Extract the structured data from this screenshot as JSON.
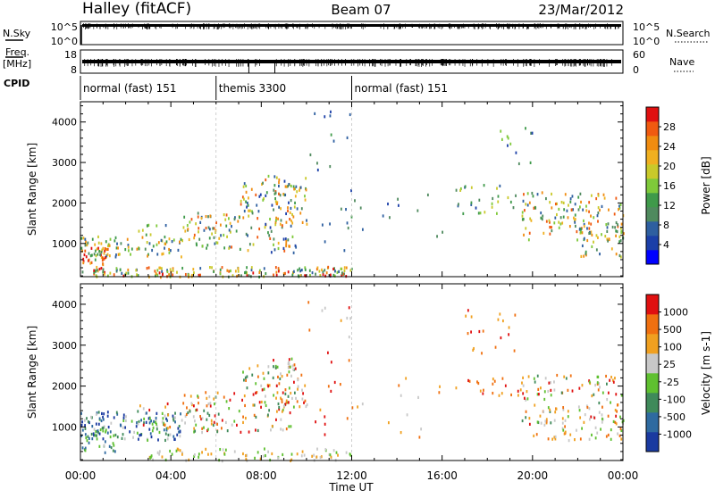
{
  "header": {
    "station": "Halley (fitACF)",
    "beam": "Beam 07",
    "date": "23/Mar/2012"
  },
  "chart_data": [
    {
      "type": "line",
      "name_left": "N.Sky",
      "name_right": "N.Search",
      "left_ticks": [
        "10^5",
        "10^0"
      ],
      "right_ticks": [
        "10^5",
        "10^0"
      ]
    },
    {
      "type": "line",
      "name_left_lines": [
        "Freq.",
        "[MHz]"
      ],
      "name_right": "Nave",
      "left_ticks": [
        "18",
        "8"
      ],
      "right_ticks": [
        "60",
        "0"
      ]
    },
    {
      "type": "table",
      "label": "CPID",
      "segments": [
        {
          "start": 0,
          "end": 6,
          "name": "normal (fast) 151"
        },
        {
          "start": 6,
          "end": 12,
          "name": "themis 3300"
        },
        {
          "start": 12,
          "end": 24,
          "name": "normal (fast) 151"
        }
      ]
    },
    {
      "type": "heatmap",
      "quantity": "Power",
      "ylabel": "Slant Range [km]",
      "ylim": [
        180,
        4500
      ],
      "yticks": [
        1000,
        2000,
        3000,
        4000
      ],
      "colorbar_label": "Power [dB]",
      "colorbar_ticks": [
        "28",
        "24",
        "20",
        "16",
        "12",
        "8",
        "4"
      ],
      "colors": [
        "#0000ff",
        "#1b3fa8",
        "#2e5fa0",
        "#4f8a5e",
        "#3f9a4a",
        "#7fc93a",
        "#c9c92a",
        "#f0b020",
        "#f08c10",
        "#f05a10",
        "#e01010"
      ]
    },
    {
      "type": "heatmap",
      "quantity": "Velocity",
      "ylabel": "Slant Range [km]",
      "ylim": [
        180,
        4500
      ],
      "yticks": [
        1000,
        2000,
        3000,
        4000
      ],
      "colorbar_label": "Velocity [m s-1]",
      "colorbar_ticks": [
        "1000",
        "500",
        "100",
        "25",
        "-25",
        "-100",
        "-500",
        "-1000"
      ],
      "colors": [
        "#1a3aa0",
        "#2e6aa0",
        "#3f8a5a",
        "#5fc030",
        "#c8c8c8",
        "#f0a020",
        "#f07010",
        "#e01010"
      ]
    }
  ],
  "xaxis": {
    "ticks": [
      "00:00",
      "04:00",
      "08:00",
      "12:00",
      "16:00",
      "20:00",
      "00:00"
    ],
    "label": "Time UT",
    "range_hours": [
      0,
      24
    ]
  }
}
